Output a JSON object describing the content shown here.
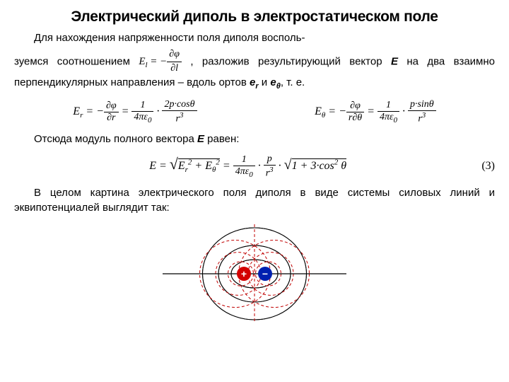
{
  "title": "Электрический диполь в электростатическом поле",
  "p1a": "Для нахождения напряженности поля диполя восполь-",
  "p1b": "зуемся соотношением ",
  "p1c": ", разложив результирующий вектор ",
  "vecE": "E",
  "p1d": " на два взаимно перпендикулярных направления – вдоль ортов ",
  "er": "e",
  "er_sub": "r",
  "p1e": " и ",
  "eth": "e",
  "eth_sub": "θ",
  "p1f": ", т. е.",
  "inline_lhs": "E",
  "inline_sub": "l",
  "inline_eq": " = −",
  "inline_num": "∂φ",
  "inline_den": "∂l",
  "Er_lhs": "E",
  "Er_sub1": "r",
  "Er_eq": " = −",
  "Er_num1": "∂φ",
  "Er_den1": "∂r",
  "Er_mid": " = ",
  "Er_num2": "1",
  "Er_den2": "4πε",
  "Er_den2sub": "0",
  "Er_dot": " · ",
  "Er_num3": "2p·cosθ",
  "Er_den3": "r",
  "Er_den3sup": "3",
  "Eth_lhs": "E",
  "Eth_sub1": "θ",
  "Eth_eq": " = −",
  "Eth_num1": "∂φ",
  "Eth_den1": "r∂θ",
  "Eth_mid": " = ",
  "Eth_num2": "1",
  "Eth_den2": "4πε",
  "Eth_den2sub": "0",
  "Eth_dot": " · ",
  "Eth_num3": "p·sinθ",
  "Eth_den3": "r",
  "Eth_den3sup": "3",
  "p2": "Отсюда модуль полного вектора ",
  "p2b": " равен:",
  "E3_lhs": "E = ",
  "E3_sqrt1": "E",
  "E3_sub_r": "r",
  "E3_sup2": "2",
  "E3_plus": " + E",
  "E3_sub_th": "θ",
  "E3_eq": " = ",
  "E3_num1": "1",
  "E3_den1": "4πε",
  "E3_den1sub": "0",
  "E3_dot1": " · ",
  "E3_num2": "p",
  "E3_den2": "r",
  "E3_den2sup": "3",
  "E3_dot2": " · ",
  "E3_sqrt2": "1 + 3·cos",
  "E3_sqrt2sup": "2",
  "E3_theta": " θ",
  "eq3": "(3)",
  "p3": "В целом картина электрического поля диполя в виде системы силовых линий и эквипотенциалей выглядит так:",
  "diagram": {
    "pos_color": "#d40000",
    "neg_color": "#0020b0",
    "pos_sign": "+",
    "neg_sign": "−",
    "field_color": "#000000",
    "equip_color": "#c00000",
    "dash": "4,3"
  }
}
